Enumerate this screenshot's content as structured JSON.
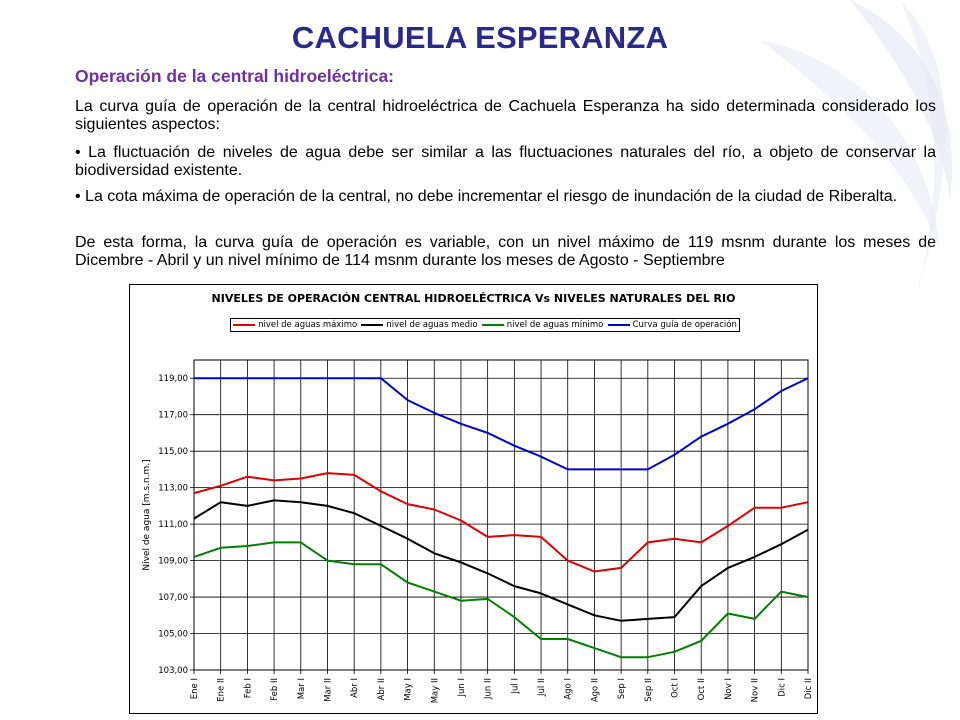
{
  "slide": {
    "title": "CACHUELA ESPERANZA",
    "subtitle": "Operación de la central hidroeléctrica:",
    "paragraph_1": "La curva guía de operación de la central hidroeléctrica de Cachuela Esperanza ha sido determinada considerado los siguientes aspectos:",
    "paragraph_2": "•   La fluctuación de niveles de agua debe ser similar a las fluctuaciones naturales del río, a objeto de conservar la biodiversidad existente.",
    "paragraph_3": "•   La cota máxima de operación de la central, no debe incrementar el riesgo de inundación de la ciudad de Riberalta.",
    "paragraph_4": " De esta forma, la curva guía de operación es variable, con un nivel máximo de 119 msnm durante los meses de Dicembre - Abril y un nivel mínimo de 114 msnm durante los meses de Agosto - Septiembre"
  },
  "chart_data": {
    "type": "line",
    "title": "NIVELES DE OPERACIÓN CENTRAL HIDROELÉCTRICA Vs NIVELES NATURALES DEL RIO",
    "ylabel": "Nivel de agua [m.s.n.m.]",
    "xlabel": "",
    "ylim": [
      103,
      120
    ],
    "yticks": [
      "103,00",
      "105,00",
      "107,00",
      "109,00",
      "111,00",
      "113,00",
      "115,00",
      "117,00",
      "119,00"
    ],
    "ytick_values": [
      103,
      105,
      107,
      109,
      111,
      113,
      115,
      117,
      119
    ],
    "grid": true,
    "legend_position": "top",
    "categories": [
      "Ene I",
      "Ene II",
      "Feb I",
      "Feb II",
      "Mar I",
      "Mar II",
      "Abr I",
      "Abr II",
      "May I",
      "May II",
      "Jun I",
      "Jun II",
      "Jul I",
      "Jul II",
      "Ago I",
      "Ago II",
      "Sep I",
      "Sep II",
      "Oct I",
      "Oct II",
      "Nov I",
      "Nov II",
      "Dic I",
      "Dic II"
    ],
    "series": [
      {
        "name": "nivel de aguas máximo",
        "color": "#e00000",
        "values": [
          112.7,
          113.1,
          113.6,
          113.4,
          113.5,
          113.8,
          113.7,
          112.8,
          112.1,
          111.8,
          111.2,
          110.3,
          110.4,
          110.3,
          109.0,
          108.4,
          108.6,
          110.0,
          110.2,
          110.0,
          110.9,
          111.9,
          111.9,
          112.2
        ]
      },
      {
        "name": "nivel de aguas medio",
        "color": "#000000",
        "values": [
          111.3,
          112.2,
          112.0,
          112.3,
          112.2,
          112.0,
          111.6,
          110.9,
          110.2,
          109.4,
          108.9,
          108.3,
          107.6,
          107.2,
          106.6,
          106.0,
          105.7,
          105.8,
          105.9,
          107.6,
          108.6,
          109.2,
          109.9,
          110.7
        ]
      },
      {
        "name": "nivel de aguas mínimo",
        "color": "#008000",
        "values": [
          109.2,
          109.7,
          109.8,
          110.0,
          110.0,
          109.0,
          108.8,
          108.8,
          107.8,
          107.3,
          106.8,
          106.9,
          105.9,
          104.7,
          104.7,
          104.2,
          103.7,
          103.7,
          104.0,
          104.6,
          106.1,
          105.8,
          107.3,
          107.0
        ]
      },
      {
        "name": "Curva guía de operación",
        "color": "#0000cc",
        "values": [
          119,
          119,
          119,
          119,
          119,
          119,
          119,
          119,
          117.8,
          117.1,
          116.5,
          116.0,
          115.3,
          114.7,
          114.0,
          114.0,
          114.0,
          114.0,
          114.8,
          115.8,
          116.5,
          117.3,
          118.3,
          119.0
        ]
      }
    ]
  }
}
